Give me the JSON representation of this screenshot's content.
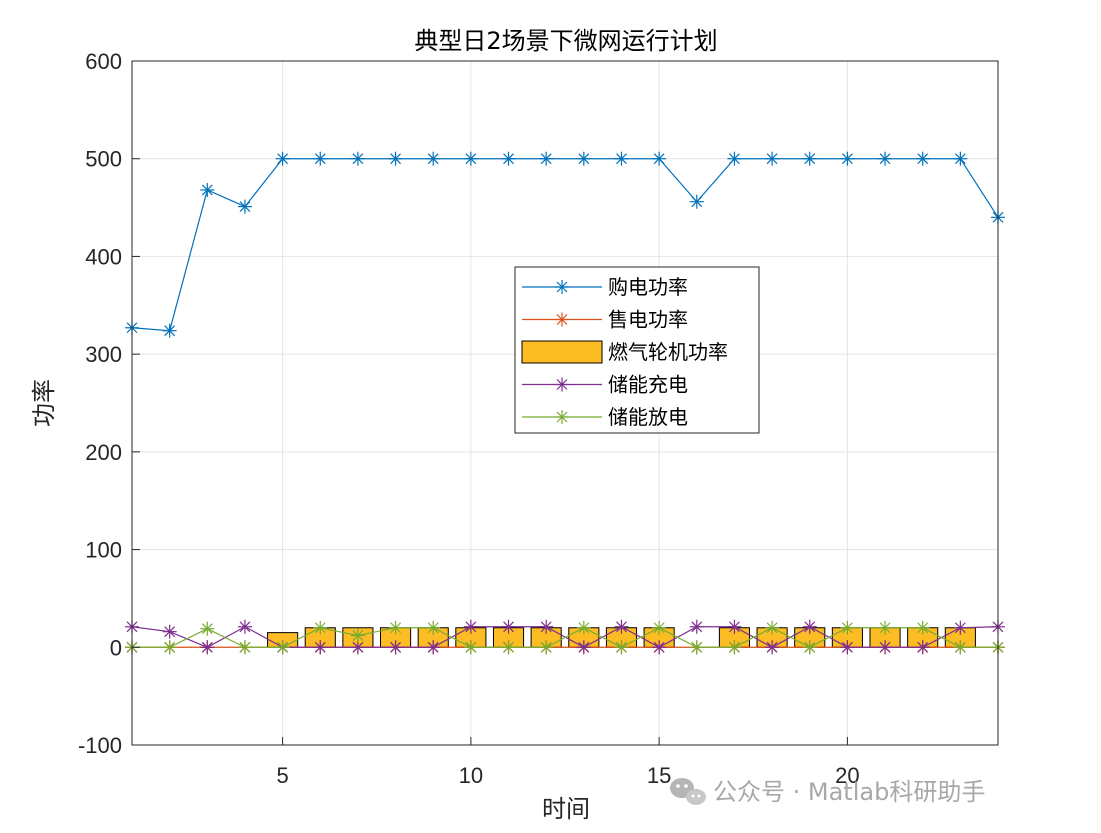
{
  "watermark": "公众号 · Matlab科研助手",
  "chart_data": {
    "type": "line",
    "title": "典型日2场景下微网运行计划",
    "xlabel": "时间",
    "ylabel": "功率",
    "xlim": [
      1,
      24
    ],
    "ylim": [
      -100,
      600
    ],
    "xticks": [
      5,
      10,
      15,
      20
    ],
    "yticks": [
      -100,
      0,
      100,
      200,
      300,
      400,
      500,
      600
    ],
    "grid": true,
    "legend_position": "center-right",
    "x": [
      1,
      2,
      3,
      4,
      5,
      6,
      7,
      8,
      9,
      10,
      11,
      12,
      13,
      14,
      15,
      16,
      17,
      18,
      19,
      20,
      21,
      22,
      23,
      24
    ],
    "series": [
      {
        "name": "购电功率",
        "kind": "line",
        "marker": "*",
        "color": "#0072BD",
        "values": [
          327,
          324,
          468,
          451,
          500,
          500,
          500,
          500,
          500,
          500,
          500,
          500,
          500,
          500,
          500,
          456,
          500,
          500,
          500,
          500,
          500,
          500,
          500,
          440
        ]
      },
      {
        "name": "售电功率",
        "kind": "line",
        "marker": "*",
        "color": "#D95319",
        "values": [
          0,
          0,
          0,
          0,
          0,
          0,
          0,
          0,
          0,
          0,
          0,
          0,
          0,
          0,
          0,
          0,
          0,
          0,
          0,
          0,
          0,
          0,
          0,
          0
        ]
      },
      {
        "name": "燃气轮机功率",
        "kind": "bar",
        "color": "#FBBC24",
        "values": [
          0,
          0,
          0,
          0,
          15,
          20,
          20,
          20,
          20,
          20,
          20,
          20,
          20,
          20,
          20,
          0,
          20,
          20,
          20,
          20,
          20,
          20,
          20,
          0
        ]
      },
      {
        "name": "储能充电",
        "kind": "line",
        "marker": "*",
        "color": "#7E2F8E",
        "values": [
          21,
          16,
          0,
          21,
          0,
          0,
          0,
          0,
          0,
          21,
          21,
          21,
          0,
          21,
          0,
          21,
          21,
          0,
          21,
          0,
          0,
          0,
          20,
          21
        ]
      },
      {
        "name": "储能放电",
        "kind": "line",
        "marker": "*",
        "color": "#77AC30",
        "values": [
          0,
          0,
          19,
          0,
          0,
          20,
          12,
          20,
          20,
          0,
          0,
          0,
          20,
          0,
          20,
          0,
          0,
          20,
          0,
          20,
          20,
          20,
          0,
          0
        ]
      }
    ]
  }
}
